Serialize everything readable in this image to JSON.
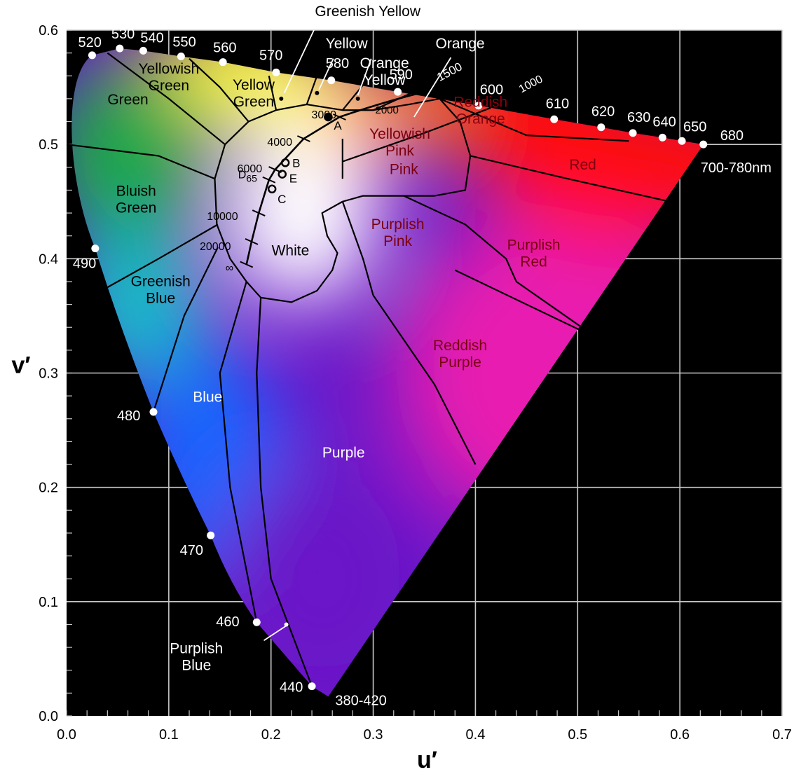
{
  "chart_data": {
    "type": "scatter",
    "title": "",
    "xlabel": "u′",
    "ylabel": "v′",
    "xlim": [
      0.0,
      0.7
    ],
    "ylim": [
      0.0,
      0.6
    ],
    "grid": true,
    "x_ticks": [
      0.0,
      0.1,
      0.2,
      0.3,
      0.4,
      0.5,
      0.6,
      0.7
    ],
    "y_ticks": [
      0.0,
      0.1,
      0.2,
      0.3,
      0.4,
      0.5,
      0.6
    ],
    "x_tick_labels": [
      "0.0",
      "0.1",
      "0.2",
      "0.3",
      "0.4",
      "0.5",
      "0.6",
      "0.7"
    ],
    "y_tick_labels": [
      "0.0",
      "0.1",
      "0.2",
      "0.3",
      "0.4",
      "0.5",
      "0.6"
    ],
    "spectral_locus": [
      {
        "label": "380-420",
        "u": 0.256,
        "v": 0.017
      },
      {
        "label": "440",
        "u": 0.24,
        "v": 0.026
      },
      {
        "label": "460",
        "u": 0.186,
        "v": 0.082
      },
      {
        "label": "470",
        "u": 0.141,
        "v": 0.158
      },
      {
        "label": "480",
        "u": 0.085,
        "v": 0.266
      },
      {
        "label": "490",
        "u": 0.028,
        "v": 0.409
      },
      {
        "label": "520",
        "u": 0.025,
        "v": 0.578
      },
      {
        "label": "530",
        "u": 0.052,
        "v": 0.584
      },
      {
        "label": "540",
        "u": 0.075,
        "v": 0.582
      },
      {
        "label": "550",
        "u": 0.112,
        "v": 0.577
      },
      {
        "label": "560",
        "u": 0.153,
        "v": 0.572
      },
      {
        "label": "570",
        "u": 0.205,
        "v": 0.563
      },
      {
        "label": "580",
        "u": 0.259,
        "v": 0.556
      },
      {
        "label": "590",
        "u": 0.324,
        "v": 0.546
      },
      {
        "label": "600",
        "u": 0.403,
        "v": 0.534
      },
      {
        "label": "610",
        "u": 0.477,
        "v": 0.522
      },
      {
        "label": "620",
        "u": 0.523,
        "v": 0.515
      },
      {
        "label": "630",
        "u": 0.554,
        "v": 0.51
      },
      {
        "label": "640",
        "u": 0.583,
        "v": 0.506
      },
      {
        "label": "650",
        "u": 0.602,
        "v": 0.503
      },
      {
        "label": "680",
        "u": 0.623,
        "v": 0.5
      }
    ],
    "endpoint_labels": {
      "red_end": "700-780nm",
      "violet_end": "380-420"
    },
    "planckian_locus": [
      {
        "label": "3000",
        "u": 0.267,
        "v": 0.524
      },
      {
        "label": "4000",
        "u": 0.232,
        "v": 0.505
      },
      {
        "label": "6000",
        "u": 0.204,
        "v": 0.478
      },
      {
        "label": "D65",
        "u": 0.198,
        "v": 0.469
      },
      {
        "label": "10000",
        "u": 0.188,
        "v": 0.44
      },
      {
        "label": "20000",
        "u": 0.181,
        "v": 0.415
      },
      {
        "label": "∞",
        "u": 0.176,
        "v": 0.395
      }
    ],
    "cct_labels_outer": [
      "1000",
      "1500",
      "2000"
    ],
    "illuminants": [
      {
        "label": "A",
        "u": 0.256,
        "v": 0.524
      },
      {
        "label": "B",
        "u": 0.214,
        "v": 0.484
      },
      {
        "label": "E",
        "u": 0.211,
        "v": 0.474
      },
      {
        "label": "C",
        "u": 0.201,
        "v": 0.461
      }
    ],
    "regions": [
      {
        "name": "Green",
        "lines": [
          "Green"
        ]
      },
      {
        "name": "Yellowish Green",
        "lines": [
          "Yellowish",
          "Green"
        ]
      },
      {
        "name": "Yellow Green",
        "lines": [
          "Yellow",
          "Green"
        ]
      },
      {
        "name": "Greenish Yellow",
        "lines": [
          "Greenish Yellow"
        ]
      },
      {
        "name": "Yellow",
        "lines": [
          "Yellow"
        ]
      },
      {
        "name": "Orange Yellow",
        "lines": [
          "Orange",
          "Yellow"
        ]
      },
      {
        "name": "Orange",
        "lines": [
          "Orange"
        ]
      },
      {
        "name": "Reddish Orange",
        "lines": [
          "Reddish",
          "Orange"
        ]
      },
      {
        "name": "Red",
        "lines": [
          "Red"
        ]
      },
      {
        "name": "Yellowish Pink",
        "lines": [
          "Yellowish",
          "Pink"
        ]
      },
      {
        "name": "Pink",
        "lines": [
          "Pink"
        ]
      },
      {
        "name": "Purplish Pink",
        "lines": [
          "Purplish",
          "Pink"
        ]
      },
      {
        "name": "Purplish Red",
        "lines": [
          "Purplish",
          "Red"
        ]
      },
      {
        "name": "Reddish Purple",
        "lines": [
          "Reddish",
          "Purple"
        ]
      },
      {
        "name": "Purple",
        "lines": [
          "Purple"
        ]
      },
      {
        "name": "Blue",
        "lines": [
          "Blue"
        ]
      },
      {
        "name": "Purplish Blue",
        "lines": [
          "Purplish",
          "Blue"
        ]
      },
      {
        "name": "Greenish Blue",
        "lines": [
          "Greenish",
          "Blue"
        ]
      },
      {
        "name": "Bluish Green",
        "lines": [
          "Bluish",
          "Green"
        ]
      },
      {
        "name": "White",
        "lines": [
          "White"
        ]
      }
    ],
    "colors": {
      "background": "#000000",
      "grid": "#c8c8c8",
      "boundary": "#000000",
      "red": "#ff1010",
      "green": "#1fa84a",
      "blue": "#1565ff",
      "violet": "#6a16c8",
      "magenta": "#e81cb0",
      "yellow": "#ffff33",
      "orange": "#ff8a1a",
      "cyan": "#18c0c8",
      "white": "#ffffff"
    }
  }
}
